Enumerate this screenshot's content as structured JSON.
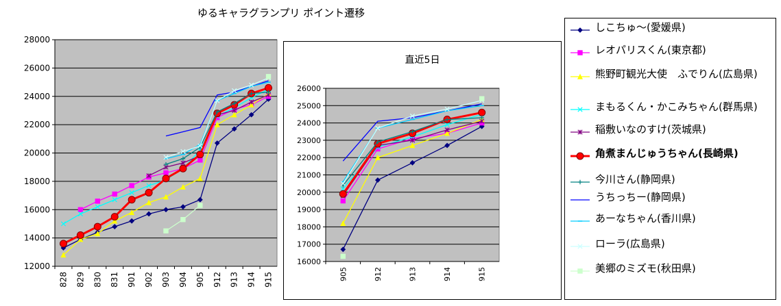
{
  "chart_data": [
    {
      "type": "line",
      "title": "ゆるキャラグランプリ ポイント遷移",
      "categories": [
        "828",
        "829",
        "830",
        "831",
        "901",
        "902",
        "903",
        "904",
        "905",
        "912",
        "913",
        "914",
        "915"
      ],
      "ylim": [
        12000,
        28000
      ],
      "yticks": [
        12000,
        14000,
        16000,
        18000,
        20000,
        22000,
        24000,
        26000,
        28000
      ],
      "grid": true,
      "legend_position": "right",
      "plot_bg": "#c0c0c0",
      "series": [
        {
          "name": "しこちゅ～(愛媛県)",
          "color": "#000080",
          "marker": "diamond",
          "values": [
            13300,
            13900,
            14400,
            14800,
            15200,
            15700,
            16000,
            16200,
            16700,
            20700,
            21700,
            22700,
            23800
          ]
        },
        {
          "name": "レオパリスくん(東京都)",
          "color": "#ff00ff",
          "marker": "square",
          "values": [
            null,
            16000,
            16600,
            17100,
            17700,
            18300,
            18600,
            18900,
            19500,
            22500,
            23100,
            23400,
            24000
          ]
        },
        {
          "name": "熊野町観光大使　ふでりん(広島県)",
          "color": "#ffff00",
          "marker": "triangle",
          "values": [
            12800,
            13900,
            14300,
            15200,
            15800,
            16500,
            16900,
            17600,
            18200,
            22000,
            22700,
            23400,
            24200
          ]
        },
        {
          "name": "まもるくん・かこみちゃん(群馬県)",
          "color": "#00ffff",
          "marker": "x",
          "values": [
            15000,
            15700,
            16200,
            16700,
            17200,
            17700,
            18100,
            18900,
            20200,
            22600,
            23200,
            23900,
            24500
          ]
        },
        {
          "name": "稲敷いなのすけ(茨城県)",
          "color": "#800080",
          "marker": "star",
          "values": [
            null,
            null,
            null,
            null,
            null,
            18400,
            19000,
            19300,
            19800,
            22700,
            23000,
            23600,
            24100
          ]
        },
        {
          "name": "角煮まんじゅうちゃん(長崎県)",
          "color": "#ff0000",
          "marker": "circle",
          "bold": true,
          "values": [
            13600,
            14200,
            14800,
            15500,
            16700,
            17200,
            18200,
            18900,
            19900,
            22800,
            23400,
            24200,
            24600
          ]
        },
        {
          "name": "今川さん(静岡県)",
          "color": "#008080",
          "marker": "plus",
          "values": [
            null,
            null,
            null,
            null,
            null,
            null,
            19200,
            19600,
            20400,
            22900,
            23500,
            24200,
            24300
          ]
        },
        {
          "name": "うちっちー(静岡県)",
          "color": "#0000ff",
          "marker": "none",
          "values": [
            null,
            null,
            null,
            null,
            null,
            null,
            21200,
            21500,
            21800,
            24100,
            24300,
            24700,
            25100
          ]
        },
        {
          "name": "あーなちゃん(香川県)",
          "color": "#00ccff",
          "marker": "dash",
          "values": [
            null,
            null,
            null,
            null,
            null,
            null,
            19600,
            19900,
            20600,
            23700,
            24200,
            24700,
            25000
          ]
        },
        {
          "name": "ローラ(広島県)",
          "color": "#ccffff",
          "marker": "x",
          "values": [
            null,
            null,
            null,
            null,
            null,
            null,
            19700,
            20100,
            20500,
            23700,
            24400,
            24800,
            25300
          ]
        },
        {
          "name": "美郷のミズモ(秋田県)",
          "color": "#ccffcc",
          "marker": "square",
          "values": [
            null,
            null,
            null,
            null,
            null,
            null,
            14500,
            15300,
            16300,
            null,
            null,
            null,
            25400
          ]
        }
      ]
    },
    {
      "type": "line",
      "title": "直近5日",
      "categories": [
        "905",
        "912",
        "913",
        "914",
        "915"
      ],
      "ylim": [
        16000,
        26000
      ],
      "yticks": [
        16000,
        17000,
        18000,
        19000,
        20000,
        21000,
        22000,
        23000,
        24000,
        25000,
        26000
      ],
      "grid": true,
      "plot_bg": "#c0c0c0",
      "series_source": "last five categories of the main chart"
    }
  ],
  "legend": [
    {
      "label": "しこちゅ～(愛媛県)",
      "color": "#000080",
      "marker": "diamond"
    },
    {
      "label": "レオパリスくん(東京都)",
      "color": "#ff00ff",
      "marker": "square"
    },
    {
      "label": "熊野町観光大使　ふでりん(広島県)",
      "color": "#ffff00",
      "marker": "triangle"
    },
    {
      "label": "まもるくん・かこみちゃん(群馬県)",
      "color": "#00ffff",
      "marker": "x"
    },
    {
      "label": "稲敷いなのすけ(茨城県)",
      "color": "#800080",
      "marker": "star"
    },
    {
      "label": "角煮まんじゅうちゃん(長崎県)",
      "color": "#ff0000",
      "marker": "circle",
      "bold": true
    },
    {
      "label": "今川さん(静岡県)",
      "color": "#008080",
      "marker": "plus"
    },
    {
      "label": "うちっちー(静岡県)",
      "color": "#0000ff",
      "marker": "none"
    },
    {
      "label": "あーなちゃん(香川県)",
      "color": "#00ccff",
      "marker": "dash"
    },
    {
      "label": "ローラ(広島県)",
      "color": "#ccffff",
      "marker": "x"
    },
    {
      "label": "美郷のミズモ(秋田県)",
      "color": "#ccffcc",
      "marker": "square"
    }
  ]
}
